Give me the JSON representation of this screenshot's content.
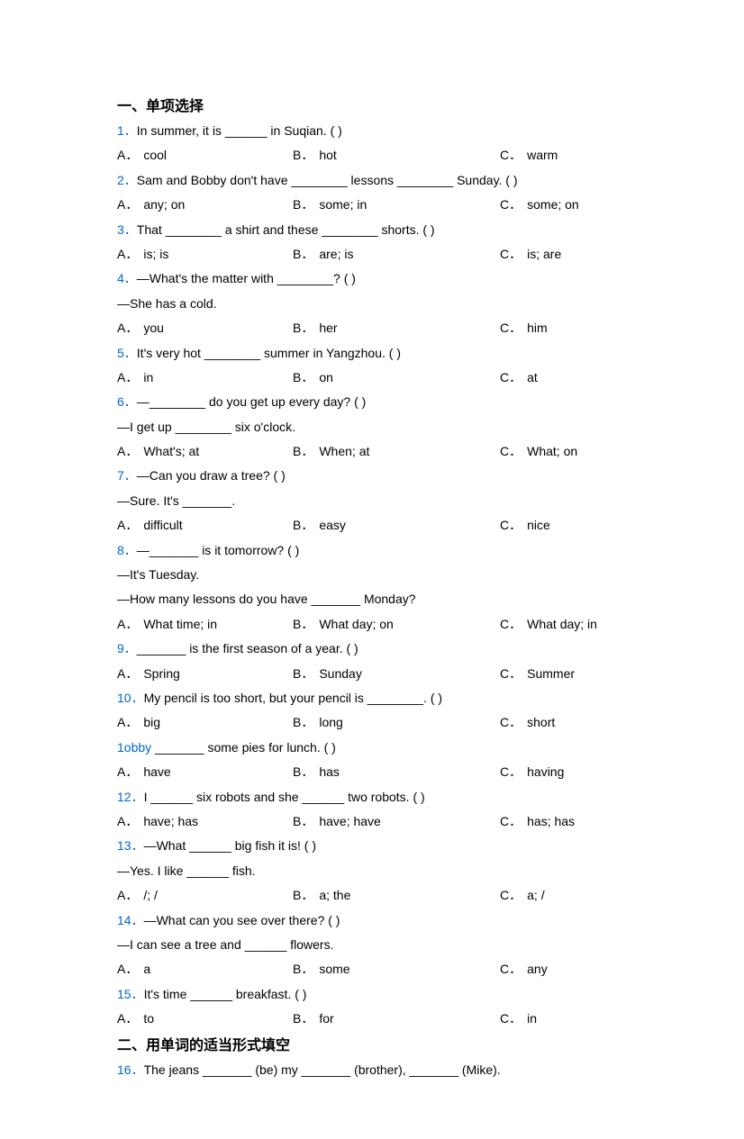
{
  "section1": {
    "title": "一、单项选择"
  },
  "section2": {
    "title": "二、用单词的适当形式填空"
  },
  "questions": {
    "1": {
      "num": "1．",
      "text": "In summer, it is ______ in Suqian. (    )",
      "a": "cool",
      "b": "hot",
      "c": "warm"
    },
    "2": {
      "num": "2．",
      "text": "Sam and Bobby don't have ________ lessons ________ Sunday. (    )",
      "a": "any; on",
      "b": "some; in",
      "c": "some; on"
    },
    "3": {
      "num": "3．",
      "text": "That ________ a shirt and these ________ shorts. (    )",
      "a": "is; is",
      "b": "are; is",
      "c": "is; are"
    },
    "4": {
      "num": "4．",
      "text": "—What's the matter with ________? (    )",
      "cont": "—She has a cold.",
      "a": "you",
      "b": "her",
      "c": "him"
    },
    "5": {
      "num": "5．",
      "text": "It's very hot ________ summer in Yangzhou. (    )",
      "a": "in",
      "b": "on",
      "c": "at"
    },
    "6": {
      "num": "6．",
      "text": "—________ do you get up every day? (    )",
      "cont": "—I get up ________ six o'clock.",
      "a": "What's; at",
      "b": "When; at",
      "c": "What; on"
    },
    "7": {
      "num": "7．",
      "text": "—Can you draw a tree? (    )",
      "cont": "—Sure. It's _______.",
      "a": "difficult",
      "b": "easy",
      "c": "nice"
    },
    "8": {
      "num": "8．",
      "text": "—_______ is it tomorrow? (   )",
      "cont": "—It's Tuesday.",
      "cont2": "—How many lessons do you have _______ Monday?",
      "a": "What time; in",
      "b": "What day; on",
      "c": "What day; in"
    },
    "9": {
      "num": "9．",
      "text": "_______ is the first season of a year. (   )",
      "a": "Spring",
      "b": "Sunday",
      "c": "Summer"
    },
    "10": {
      "num": "10．",
      "text": "My pencil is too short, but your pencil is ________. (   )",
      "a": "big",
      "b": "long",
      "c": "short"
    },
    "11": {
      "num": "1obby",
      "text": " _______ some pies for lunch. (   )",
      "a": "have",
      "b": "has",
      "c": "having"
    },
    "12": {
      "num": "12．",
      "text": "I ______ six robots and she ______ two robots. (   )",
      "a": "have; has",
      "b": "have; have",
      "c": "has; has"
    },
    "13": {
      "num": "13．",
      "text": "—What ______ big fish it is! (    )",
      "cont": "—Yes. I like ______ fish.",
      "a": "/; /",
      "b": "a; the",
      "c": "a; /"
    },
    "14": {
      "num": "14．",
      "text": "—What can you see over there? (   )",
      "cont": "—I can see a tree and ______ flowers.",
      "a": "a",
      "b": "some",
      "c": "any"
    },
    "15": {
      "num": "15．",
      "text": "It's time ______ breakfast. (   )",
      "a": "to",
      "b": "for",
      "c": "in"
    },
    "16": {
      "num": "16．",
      "text": "The jeans _______ (be) my _______ (brother), _______ (Mike)."
    }
  },
  "labels": {
    "a": "A．",
    "b": "B．",
    "c": "C．"
  }
}
